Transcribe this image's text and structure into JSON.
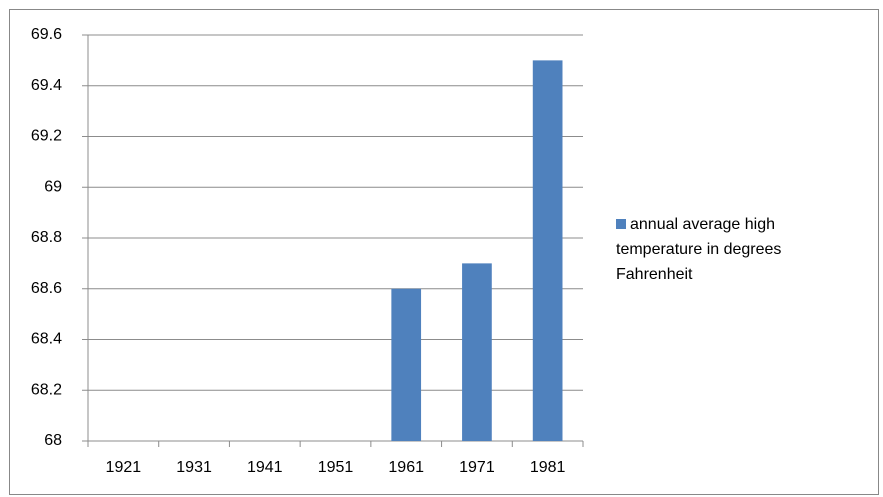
{
  "chart_data": {
    "type": "bar",
    "categories": [
      "1921",
      "1931",
      "1941",
      "1951",
      "1961",
      "1971",
      "1981"
    ],
    "series": [
      {
        "name": "annual average high temperature in degrees Fahrenheit",
        "color": "#4f81bd",
        "values": [
          null,
          null,
          null,
          null,
          68.6,
          68.7,
          69.5
        ]
      }
    ],
    "ylim": [
      68,
      69.6
    ],
    "yticks": [
      68,
      68.2,
      68.4,
      68.6,
      68.8,
      69,
      69.2,
      69.4,
      69.6
    ],
    "grid": true,
    "legend": "right"
  }
}
